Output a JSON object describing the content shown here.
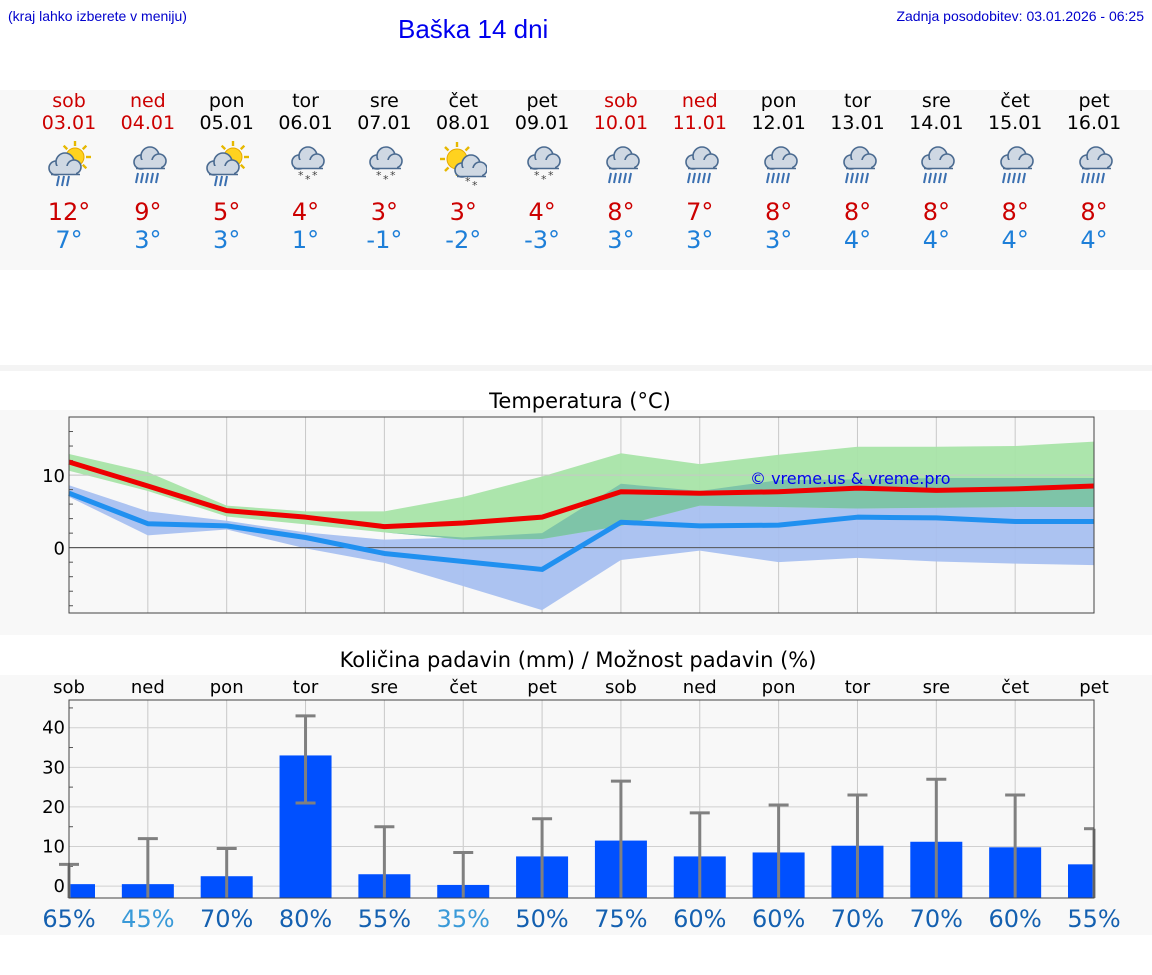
{
  "header": {
    "hint": "(kraj lahko izberete v meniju)",
    "title": "Baška 14 dni",
    "updated": "Zadnja posodobitev: 03.01.2026 - 06:25"
  },
  "days": [
    {
      "name": "sob",
      "date": "03.01",
      "icon": "sun-cloud-rain-icon",
      "max": "12°",
      "min": "7°",
      "weekend": true
    },
    {
      "name": "ned",
      "date": "04.01",
      "icon": "cloud-rain-icon",
      "max": "9°",
      "min": "3°",
      "weekend": true
    },
    {
      "name": "pon",
      "date": "05.01",
      "icon": "sun-cloud-rain-icon",
      "max": "5°",
      "min": "3°",
      "weekend": false
    },
    {
      "name": "tor",
      "date": "06.01",
      "icon": "cloud-snow-icon",
      "max": "4°",
      "min": "1°",
      "weekend": false
    },
    {
      "name": "sre",
      "date": "07.01",
      "icon": "cloud-snow-icon",
      "max": "3°",
      "min": "-1°",
      "weekend": false
    },
    {
      "name": "čet",
      "date": "08.01",
      "icon": "sun-cloud-snow-icon",
      "max": "3°",
      "min": "-2°",
      "weekend": false
    },
    {
      "name": "pet",
      "date": "09.01",
      "icon": "cloud-snow-icon",
      "max": "4°",
      "min": "-3°",
      "weekend": false
    },
    {
      "name": "sob",
      "date": "10.01",
      "icon": "cloud-rain-icon",
      "max": "8°",
      "min": "3°",
      "weekend": true
    },
    {
      "name": "ned",
      "date": "11.01",
      "icon": "cloud-rain-icon",
      "max": "7°",
      "min": "3°",
      "weekend": true
    },
    {
      "name": "pon",
      "date": "12.01",
      "icon": "cloud-rain-icon",
      "max": "8°",
      "min": "3°",
      "weekend": false
    },
    {
      "name": "tor",
      "date": "13.01",
      "icon": "cloud-rain-icon",
      "max": "8°",
      "min": "4°",
      "weekend": false
    },
    {
      "name": "sre",
      "date": "14.01",
      "icon": "cloud-rain-icon",
      "max": "8°",
      "min": "4°",
      "weekend": false
    },
    {
      "name": "čet",
      "date": "15.01",
      "icon": "cloud-rain-icon",
      "max": "8°",
      "min": "4°",
      "weekend": false
    },
    {
      "name": "pet",
      "date": "16.01",
      "icon": "cloud-rain-icon",
      "max": "8°",
      "min": "4°",
      "weekend": false
    }
  ],
  "colors": {
    "max_line": "#ee0000",
    "min_line": "#2090f0",
    "max_band": "#a8e4a8",
    "min_band": "#a8c0f0",
    "overlap_band": "#7ec4a8",
    "bar": "#0050ff",
    "error": "#808080",
    "weekend": "#cc0000",
    "pct_high": "#1460b0",
    "pct_low": "#3a9ad8"
  },
  "chart_data": [
    {
      "type": "line",
      "title": "Temperatura (°C)",
      "watermark": "© vreme.us & vreme.pro",
      "x": [
        0,
        1,
        2,
        3,
        4,
        5,
        6,
        7,
        8,
        9,
        10,
        11,
        12,
        13
      ],
      "ylim": [
        -9,
        18
      ],
      "yticks": [
        0,
        10
      ],
      "series": [
        {
          "name": "max",
          "values": [
            11.8,
            8.5,
            5.1,
            4.2,
            2.9,
            3.4,
            4.2,
            7.7,
            7.5,
            7.7,
            8.2,
            7.9,
            8.1,
            8.5
          ]
        },
        {
          "name": "min",
          "values": [
            7.5,
            3.3,
            3.0,
            1.4,
            -0.8,
            -1.9,
            -3.0,
            3.5,
            3.0,
            3.1,
            4.2,
            4.1,
            3.6,
            3.6
          ]
        },
        {
          "name": "max_range_upper",
          "values": [
            12.9,
            10.4,
            5.8,
            5.0,
            5.0,
            7.0,
            9.8,
            13.0,
            11.5,
            12.8,
            13.9,
            13.9,
            14.0,
            14.6
          ]
        },
        {
          "name": "max_range_lower",
          "values": [
            10.6,
            7.8,
            4.3,
            3.2,
            2.1,
            1.1,
            1.2,
            3.0,
            5.8,
            5.6,
            5.4,
            5.5,
            5.6,
            5.6
          ]
        },
        {
          "name": "min_range_upper",
          "values": [
            8.6,
            5.0,
            3.7,
            2.1,
            1.1,
            1.4,
            2.0,
            8.8,
            7.8,
            9.3,
            9.4,
            9.6,
            9.6,
            9.6
          ]
        },
        {
          "name": "min_range_lower",
          "values": [
            7.0,
            1.7,
            2.5,
            -0.1,
            -2.1,
            -5.3,
            -8.6,
            -1.7,
            -0.4,
            -2.0,
            -1.4,
            -1.9,
            -2.2,
            -2.4
          ]
        }
      ]
    },
    {
      "type": "bar",
      "title": "Količina padavin (mm) / Možnost padavin (%)",
      "categories": [
        "sob",
        "ned",
        "pon",
        "tor",
        "sre",
        "čet",
        "pet",
        "sob",
        "ned",
        "pon",
        "tor",
        "sre",
        "čet",
        "pet"
      ],
      "values": [
        0.5,
        0.5,
        2.5,
        33,
        3,
        0.3,
        7.5,
        11.5,
        7.5,
        8.5,
        10.2,
        11.2,
        9.8,
        5.5
      ],
      "error_high": [
        5.5,
        12,
        9.5,
        43,
        15,
        8.5,
        17,
        26.5,
        18.5,
        20.5,
        23,
        27,
        23,
        14.5
      ],
      "error_low": [
        0,
        0,
        0,
        21,
        0,
        0,
        0,
        0,
        0,
        0,
        0,
        0,
        0,
        0
      ],
      "probability": [
        "65%",
        "45%",
        "70%",
        "80%",
        "55%",
        "35%",
        "50%",
        "75%",
        "60%",
        "60%",
        "70%",
        "70%",
        "60%",
        "55%"
      ],
      "ylim": [
        -3,
        47
      ],
      "yticks": [
        0,
        10,
        20,
        30,
        40
      ]
    }
  ]
}
